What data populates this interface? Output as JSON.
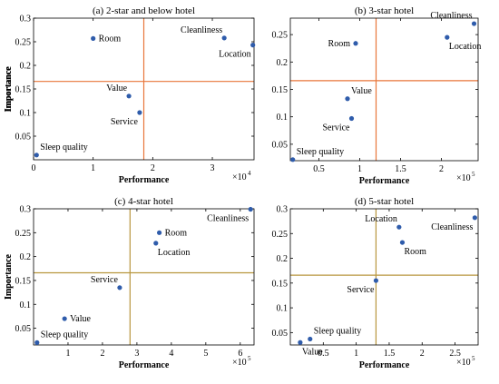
{
  "chart_data": [
    {
      "type": "scatter",
      "title": "(a) 2-star and below hotel",
      "xlabel": "Performance",
      "ylabel": "Importance",
      "x_multiplier": {
        "base": "×10",
        "exp": "4"
      },
      "xlim": [
        0,
        37000
      ],
      "ylim": [
        0,
        0.3
      ],
      "xticks": [
        0,
        10000,
        20000,
        30000
      ],
      "xtick_labels": [
        "0",
        "1",
        "2",
        "3"
      ],
      "yticks": [
        0.05,
        0.1,
        0.15,
        0.2,
        0.25,
        0.3
      ],
      "ytick_labels": [
        "0.05",
        "0.1",
        "0.15",
        "0.2",
        "0.25",
        "0.3"
      ],
      "ref_x": 18500,
      "ref_y": 0.166,
      "line_color": "#e8763a",
      "points": [
        {
          "label": "Room",
          "x": 10000,
          "y": 0.257,
          "pos": "right"
        },
        {
          "label": "Cleanliness",
          "x": 32000,
          "y": 0.258,
          "pos": "above-left"
        },
        {
          "label": "Location",
          "x": 36800,
          "y": 0.243,
          "pos": "below-left"
        },
        {
          "label": "Value",
          "x": 16000,
          "y": 0.135,
          "pos": "above-left"
        },
        {
          "label": "Service",
          "x": 17800,
          "y": 0.1,
          "pos": "below-left"
        },
        {
          "label": "Sleep quality",
          "x": 500,
          "y": 0.01,
          "pos": "above-right"
        }
      ]
    },
    {
      "type": "scatter",
      "title": "(b) 3-star hotel",
      "xlabel": "Performance",
      "ylabel": "Importance",
      "x_multiplier": {
        "base": "×10",
        "exp": "5"
      },
      "xlim": [
        15000,
        245000
      ],
      "ylim": [
        0.02,
        0.28
      ],
      "xticks": [
        50000,
        100000,
        150000,
        200000
      ],
      "xtick_labels": [
        "0.5",
        "1",
        "1.5",
        "2"
      ],
      "yticks": [
        0.05,
        0.1,
        0.15,
        0.2,
        0.25
      ],
      "ytick_labels": [
        "0.05",
        "0.1",
        "0.15",
        "0.2",
        "0.25"
      ],
      "ref_x": 120000,
      "ref_y": 0.166,
      "line_color": "#e8763a",
      "points": [
        {
          "label": "Cleanliness",
          "x": 240000,
          "y": 0.27,
          "pos": "above-left"
        },
        {
          "label": "Location",
          "x": 207000,
          "y": 0.245,
          "pos": "below-right"
        },
        {
          "label": "Room",
          "x": 95000,
          "y": 0.234,
          "pos": "left"
        },
        {
          "label": "Value",
          "x": 85000,
          "y": 0.133,
          "pos": "above-right"
        },
        {
          "label": "Service",
          "x": 90000,
          "y": 0.097,
          "pos": "below-left"
        },
        {
          "label": "Sleep quality",
          "x": 18000,
          "y": 0.022,
          "pos": "above-right"
        }
      ]
    },
    {
      "type": "scatter",
      "title": "(c) 4-star hotel",
      "xlabel": "Performance",
      "ylabel": "Importance",
      "x_multiplier": {
        "base": "×10",
        "exp": "5"
      },
      "xlim": [
        0,
        640000
      ],
      "ylim": [
        0.015,
        0.3
      ],
      "xticks": [
        100000,
        200000,
        300000,
        400000,
        500000,
        600000
      ],
      "xtick_labels": [
        "1",
        "2",
        "3",
        "4",
        "5",
        "6"
      ],
      "yticks": [
        0.05,
        0.1,
        0.15,
        0.2,
        0.25,
        0.3
      ],
      "ytick_labels": [
        "0.05",
        "0.1",
        "0.15",
        "0.2",
        "0.25",
        "0.3"
      ],
      "ref_x": 280000,
      "ref_y": 0.166,
      "line_color": "#b8963e",
      "points": [
        {
          "label": "Cleanliness",
          "x": 630000,
          "y": 0.299,
          "pos": "below-left"
        },
        {
          "label": "Room",
          "x": 365000,
          "y": 0.25,
          "pos": "right"
        },
        {
          "label": "Location",
          "x": 355000,
          "y": 0.228,
          "pos": "below-right"
        },
        {
          "label": "Service",
          "x": 250000,
          "y": 0.135,
          "pos": "above-left"
        },
        {
          "label": "Value",
          "x": 90000,
          "y": 0.07,
          "pos": "right"
        },
        {
          "label": "Sleep quality",
          "x": 10000,
          "y": 0.02,
          "pos": "above-right"
        }
      ]
    },
    {
      "type": "scatter",
      "title": "(d) 5-star hotel",
      "xlabel": "Performance",
      "ylabel": "Importance",
      "x_multiplier": {
        "base": "×10",
        "exp": "5"
      },
      "xlim": [
        0,
        285000
      ],
      "ylim": [
        0.025,
        0.3
      ],
      "xticks": [
        50000,
        100000,
        150000,
        200000,
        250000
      ],
      "xtick_labels": [
        "0.5",
        "1",
        "1.5",
        "2",
        "2.5"
      ],
      "yticks": [
        0.05,
        0.1,
        0.15,
        0.2,
        0.25,
        0.3
      ],
      "ytick_labels": [
        "0.05",
        "0.1",
        "0.15",
        "0.2",
        "0.25",
        "0.3"
      ],
      "ref_x": 130000,
      "ref_y": 0.166,
      "line_color": "#b8963e",
      "points": [
        {
          "label": "Location",
          "x": 165000,
          "y": 0.263,
          "pos": "above-left"
        },
        {
          "label": "Cleanliness",
          "x": 280000,
          "y": 0.282,
          "pos": "below-left"
        },
        {
          "label": "Room",
          "x": 170000,
          "y": 0.232,
          "pos": "below-right"
        },
        {
          "label": "Service",
          "x": 130000,
          "y": 0.155,
          "pos": "below-left"
        },
        {
          "label": "Sleep quality",
          "x": 30000,
          "y": 0.037,
          "pos": "above-right"
        },
        {
          "label": "Value",
          "x": 15000,
          "y": 0.03,
          "pos": "below-right"
        }
      ]
    }
  ]
}
